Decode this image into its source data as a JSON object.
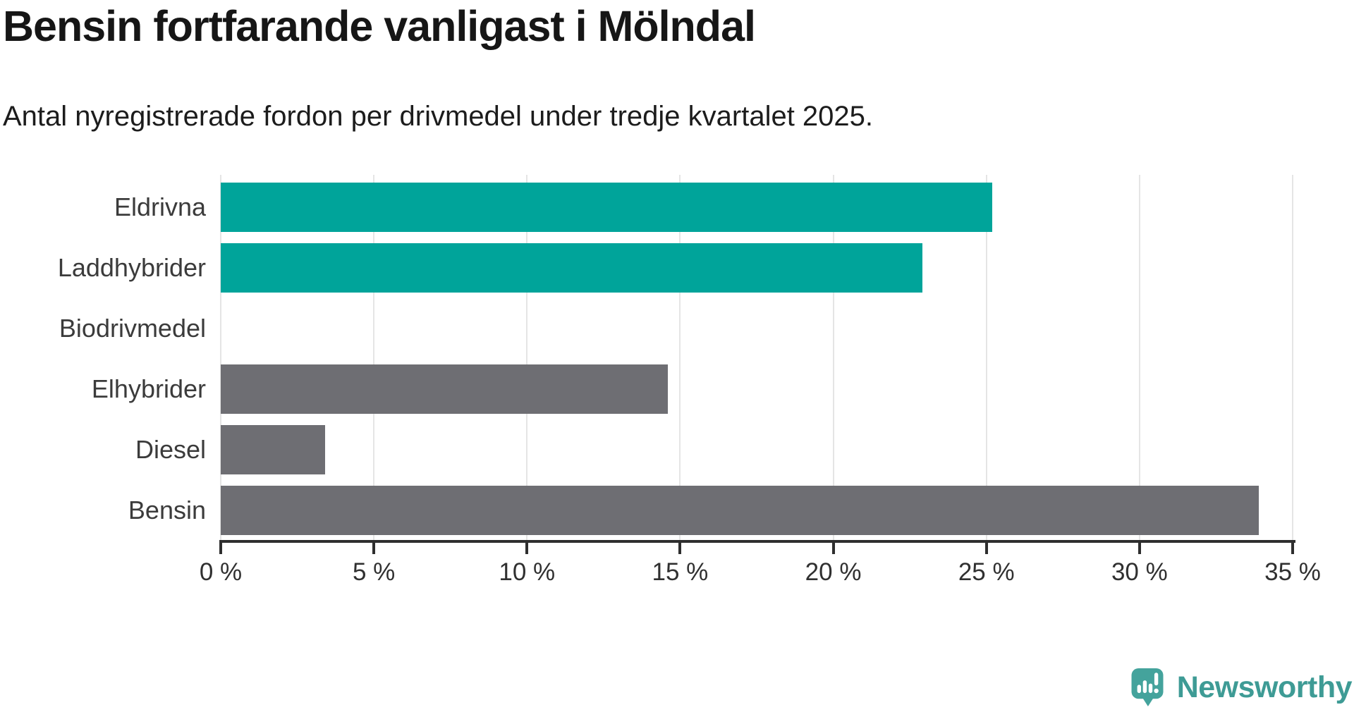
{
  "header": {
    "title": "Bensin fortfarande vanligast i Mölndal",
    "subtitle": "Antal nyregistrerade fordon per drivmedel under tredje kvartalet 2025."
  },
  "chart_data": {
    "type": "bar",
    "orientation": "horizontal",
    "title": "Bensin fortfarande vanligast i Mölndal",
    "subtitle": "Antal nyregistrerade fordon per drivmedel under tredje kvartalet 2025.",
    "categories": [
      "Eldrivna",
      "Laddhybrider",
      "Biodrivmedel",
      "Elhybrider",
      "Diesel",
      "Bensin"
    ],
    "values": [
      25.2,
      22.9,
      0,
      14.6,
      3.4,
      33.9
    ],
    "unit": "%",
    "xlim": [
      0,
      35
    ],
    "x_ticks": [
      0,
      5,
      10,
      15,
      20,
      25,
      30,
      35
    ],
    "x_tick_labels": [
      "0 %",
      "5 %",
      "10 %",
      "15 %",
      "20 %",
      "25 %",
      "30 %",
      "35 %"
    ],
    "bar_colors": [
      "#00a49a",
      "#00a49a",
      "#6e6e73",
      "#6e6e73",
      "#6e6e73",
      "#6e6e73"
    ],
    "colors": {
      "highlight": "#00a49a",
      "default": "#6e6e73",
      "gridline": "#e5e5e5",
      "axis": "#2e2e2e"
    },
    "grid": true,
    "legend": "none",
    "value_labels": "none"
  },
  "footer": {
    "brand": "Newsworthy",
    "brand_color": "#3e9b95",
    "logo_icon": "newsworthy-speech-bubble-chart-icon",
    "logo_color": "#44a39c"
  }
}
